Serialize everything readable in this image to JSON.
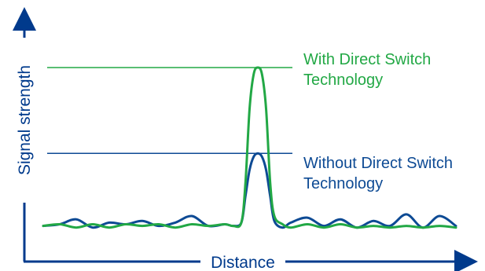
{
  "colors": {
    "axis": "#003a8c",
    "with_series": "#22a845",
    "without_series": "#0d4a94"
  },
  "chart_data": {
    "type": "line",
    "title": "",
    "xlabel": "Distance",
    "ylabel": "Signal strength",
    "grid": false,
    "legend": "none",
    "x": [
      0.0,
      0.04,
      0.08,
      0.12,
      0.16,
      0.2,
      0.24,
      0.28,
      0.32,
      0.36,
      0.4,
      0.44,
      0.46,
      0.48,
      0.49,
      0.5,
      0.51,
      0.52,
      0.53,
      0.54,
      0.55,
      0.56,
      0.58,
      0.6,
      0.64,
      0.68,
      0.72,
      0.76,
      0.8,
      0.84,
      0.88,
      0.92,
      0.96,
      1.0
    ],
    "series": [
      {
        "key": "with",
        "values": [
          0.04,
          0.05,
          0.03,
          0.05,
          0.03,
          0.05,
          0.04,
          0.05,
          0.03,
          0.05,
          0.04,
          0.05,
          0.04,
          0.06,
          0.3,
          0.75,
          0.96,
          1.0,
          0.96,
          0.75,
          0.3,
          0.1,
          0.05,
          0.03,
          0.05,
          0.03,
          0.05,
          0.03,
          0.04,
          0.03,
          0.04,
          0.03,
          0.04,
          0.03
        ]
      },
      {
        "key": "without",
        "values": [
          0.04,
          0.05,
          0.08,
          0.03,
          0.06,
          0.05,
          0.07,
          0.04,
          0.06,
          0.1,
          0.04,
          0.05,
          0.04,
          0.06,
          0.22,
          0.38,
          0.46,
          0.48,
          0.46,
          0.38,
          0.22,
          0.07,
          0.03,
          0.06,
          0.09,
          0.04,
          0.08,
          0.03,
          0.07,
          0.04,
          0.11,
          0.03,
          0.1,
          0.04
        ]
      }
    ],
    "reference_lines": [
      {
        "key": "with",
        "y": 1.0,
        "label_lines": [
          "With Direct Switch",
          "Technology"
        ]
      },
      {
        "key": "without",
        "y": 0.48,
        "label_lines": [
          "Without Direct Switch",
          "Technology"
        ]
      }
    ]
  }
}
